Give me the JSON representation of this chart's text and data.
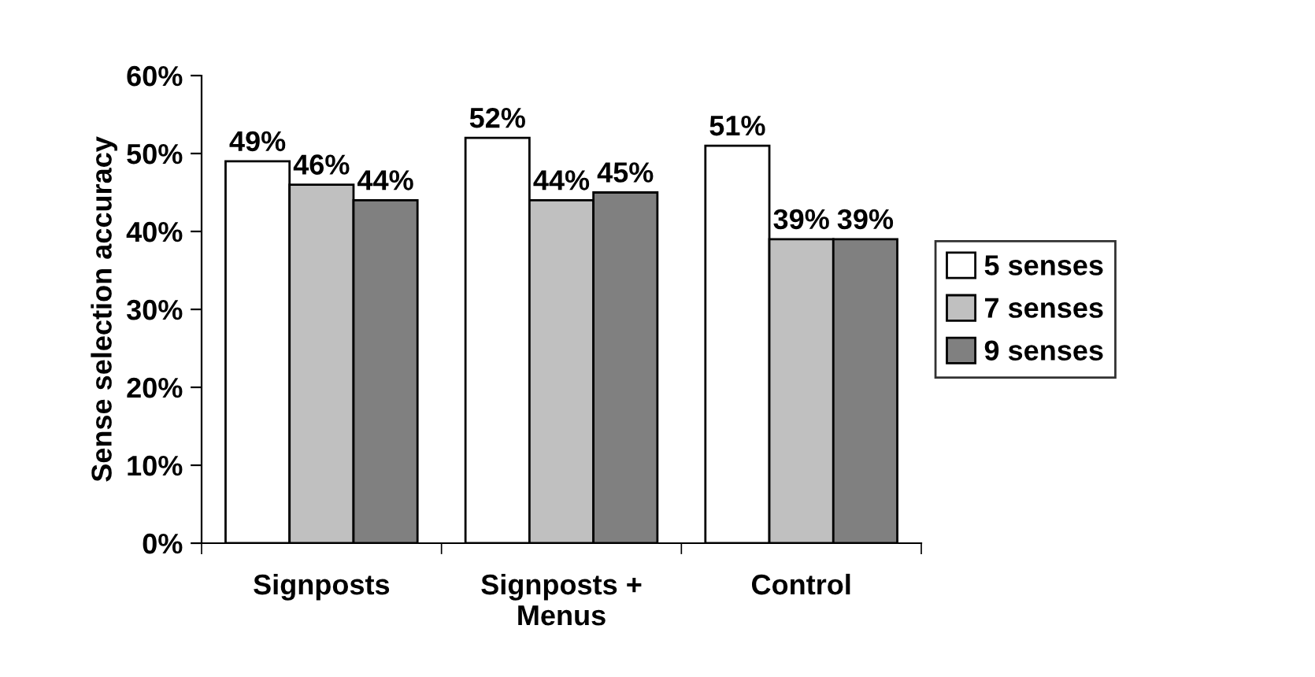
{
  "chart_data": {
    "type": "bar",
    "ylabel": "Sense selection accuracy",
    "categories": [
      "Signposts",
      "Signposts +\nMenus",
      "Control"
    ],
    "series": [
      {
        "name": "5 senses",
        "color": "#ffffff",
        "values": [
          49,
          52,
          51
        ],
        "value_labels": [
          "49%",
          "52%",
          "51%"
        ]
      },
      {
        "name": "7 senses",
        "color": "#c0c0c0",
        "values": [
          46,
          44,
          39
        ],
        "value_labels": [
          "46%",
          "44%",
          "39%"
        ]
      },
      {
        "name": "9 senses",
        "color": "#808080",
        "values": [
          44,
          45,
          39
        ],
        "value_labels": [
          "44%",
          "45%",
          "39%"
        ]
      }
    ],
    "ylim": [
      0,
      60
    ],
    "yticks": [
      {
        "value": 0,
        "label": "0%"
      },
      {
        "value": 10,
        "label": "10%"
      },
      {
        "value": 20,
        "label": "20%"
      },
      {
        "value": 30,
        "label": "30%"
      },
      {
        "value": 40,
        "label": "40%"
      },
      {
        "value": 50,
        "label": "50%"
      },
      {
        "value": 60,
        "label": "60%"
      }
    ],
    "grid": false,
    "legend": "right"
  }
}
